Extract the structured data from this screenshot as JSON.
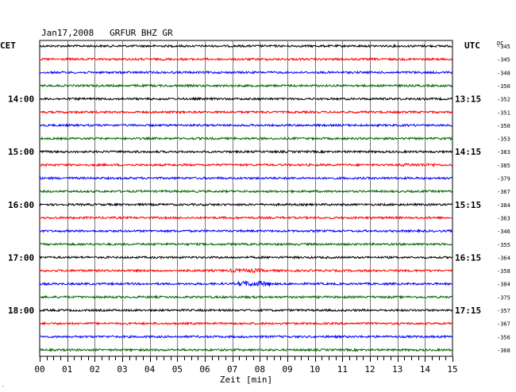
{
  "chart_data": {
    "type": "line",
    "title": "Jan17,2008   GRFUR BHZ GR",
    "left_timezone": "CET",
    "right_timezone": "UTC",
    "dc_label": "DC",
    "xlabel": "Zeit [min]",
    "xlim": [
      0,
      15
    ],
    "x_ticks": [
      "00",
      "01",
      "02",
      "03",
      "04",
      "05",
      "06",
      "07",
      "08",
      "09",
      "10",
      "11",
      "12",
      "13",
      "14",
      "15"
    ],
    "trace_colors": [
      "#000000",
      "#ff0000",
      "#0000ff",
      "#006600"
    ],
    "grid": true,
    "hour_labels_left": [
      {
        "trace": 4,
        "label": "14:00"
      },
      {
        "trace": 8,
        "label": "15:00"
      },
      {
        "trace": 12,
        "label": "16:00"
      },
      {
        "trace": 16,
        "label": "17:00"
      },
      {
        "trace": 20,
        "label": "18:00"
      }
    ],
    "hour_labels_right": [
      {
        "trace": 4,
        "label": "13:15"
      },
      {
        "trace": 8,
        "label": "14:15"
      },
      {
        "trace": 12,
        "label": "15:15"
      },
      {
        "trace": 16,
        "label": "16:15"
      },
      {
        "trace": 20,
        "label": "17:15"
      }
    ],
    "dc_offsets": [
      "-345",
      "-345",
      "-348",
      "-350",
      "-352",
      "-351",
      "-350",
      "-353",
      "-383",
      "-385",
      "-379",
      "-367",
      "-384",
      "-363",
      "-346",
      "-355",
      "-364",
      "-358",
      "-384",
      "-375",
      "-357",
      "-367",
      "-356",
      "-368"
    ]
  }
}
